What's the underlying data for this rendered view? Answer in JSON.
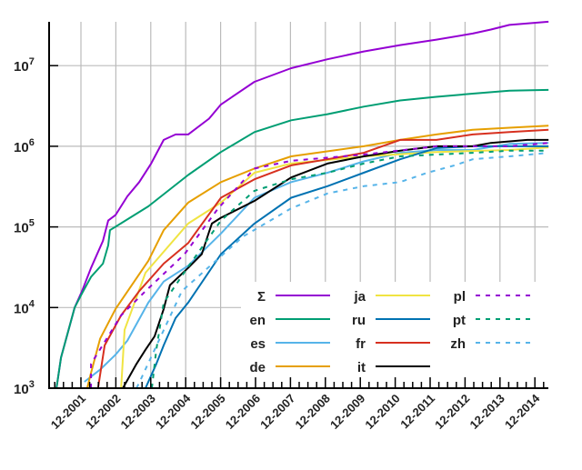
{
  "chart_data": {
    "type": "line",
    "title": "",
    "xlabel": "",
    "ylabel": "",
    "y_scale": "log",
    "ylim": [
      1000,
      35000000
    ],
    "xlim": [
      "2001-01",
      "2015-04"
    ],
    "grid": true,
    "legend_position": "bottom-right",
    "x_tick_labels": [
      "12-2001",
      "12-2002",
      "12-2003",
      "12-2004",
      "12-2005",
      "12-2006",
      "12-2007",
      "12-2008",
      "12-2009",
      "12-2010",
      "12-2011",
      "12-2012",
      "12-2013",
      "12-2014"
    ],
    "x_tick_years": [
      2001.92,
      2002.92,
      2003.92,
      2004.92,
      2005.92,
      2006.92,
      2007.92,
      2008.92,
      2009.92,
      2010.92,
      2011.92,
      2012.92,
      2013.92,
      2014.92
    ],
    "y_ticks": [
      {
        "base": "10",
        "exp": "3",
        "value": 1000
      },
      {
        "base": "10",
        "exp": "4",
        "value": 10000
      },
      {
        "base": "10",
        "exp": "5",
        "value": 100000
      },
      {
        "base": "10",
        "exp": "6",
        "value": 1000000
      },
      {
        "base": "10",
        "exp": "7",
        "value": 10000000
      }
    ],
    "series": [
      {
        "name": "Σ",
        "color": "#9400d3",
        "dash": false,
        "points": [
          [
            2001.22,
            1000
          ],
          [
            2001.35,
            2400
          ],
          [
            2001.74,
            10000
          ],
          [
            2001.95,
            16000
          ],
          [
            2002.21,
            31000
          ],
          [
            2002.55,
            67000
          ],
          [
            2002.7,
            120000
          ],
          [
            2002.91,
            140000
          ],
          [
            2003.25,
            240000
          ],
          [
            2003.59,
            360000
          ],
          [
            2003.93,
            610000
          ],
          [
            2004.29,
            1200000
          ],
          [
            2004.63,
            1400000
          ],
          [
            2004.99,
            1400000
          ],
          [
            2005.59,
            2200000
          ],
          [
            2005.93,
            3300000
          ],
          [
            2006.89,
            6300000
          ],
          [
            2007.94,
            9300000
          ],
          [
            2008.98,
            12000000
          ],
          [
            2010.02,
            15000000
          ],
          [
            2011.06,
            18000000
          ],
          [
            2012.1,
            21000000
          ],
          [
            2013.14,
            25000000
          ],
          [
            2013.66,
            28000000
          ],
          [
            2014.19,
            32000000
          ],
          [
            2015.31,
            35000000
          ]
        ]
      },
      {
        "name": "en",
        "color": "#009e73",
        "dash": false,
        "points": [
          [
            2001.22,
            1000
          ],
          [
            2001.35,
            2400
          ],
          [
            2001.74,
            10000
          ],
          [
            2001.95,
            15000
          ],
          [
            2002.21,
            24000
          ],
          [
            2002.55,
            35000
          ],
          [
            2002.7,
            59000
          ],
          [
            2002.75,
            91000
          ],
          [
            2003.85,
            180000
          ],
          [
            2004.99,
            440000
          ],
          [
            2005.93,
            850000
          ],
          [
            2006.89,
            1500000
          ],
          [
            2007.94,
            2100000
          ],
          [
            2008.98,
            2500000
          ],
          [
            2010.02,
            3100000
          ],
          [
            2011.06,
            3700000
          ],
          [
            2012.1,
            4100000
          ],
          [
            2013.14,
            4500000
          ],
          [
            2014.19,
            4900000
          ],
          [
            2015.31,
            5000000
          ]
        ]
      },
      {
        "name": "es",
        "color": "#56b4e9",
        "dash": false,
        "points": [
          [
            2002.02,
            1200
          ],
          [
            2002.47,
            1700
          ],
          [
            2002.91,
            2600
          ],
          [
            2003.25,
            3900
          ],
          [
            2003.85,
            11500
          ],
          [
            2004.29,
            21000
          ],
          [
            2004.99,
            33000
          ],
          [
            2005.93,
            83000
          ],
          [
            2006.89,
            230000
          ],
          [
            2007.94,
            360000
          ],
          [
            2008.98,
            470000
          ],
          [
            2010.02,
            650000
          ],
          [
            2011.06,
            830000
          ],
          [
            2012.1,
            900000
          ],
          [
            2013.14,
            900000
          ],
          [
            2014.19,
            1070000
          ],
          [
            2015.31,
            1100000
          ]
        ]
      },
      {
        "name": "de",
        "color": "#e69f00",
        "dash": false,
        "points": [
          [
            2002.1,
            1000
          ],
          [
            2002.21,
            1550
          ],
          [
            2002.47,
            4100
          ],
          [
            2002.91,
            9600
          ],
          [
            2003.85,
            38000
          ],
          [
            2004.29,
            91000
          ],
          [
            2004.99,
            200000
          ],
          [
            2005.93,
            360000
          ],
          [
            2006.89,
            530000
          ],
          [
            2007.94,
            750000
          ],
          [
            2010.02,
            1000000
          ],
          [
            2011.06,
            1200000
          ],
          [
            2012.1,
            1400000
          ],
          [
            2013.14,
            1600000
          ],
          [
            2014.19,
            1700000
          ],
          [
            2015.31,
            1800000
          ]
        ]
      },
      {
        "name": "ja",
        "color": "#f0e442",
        "dash": false,
        "points": [
          [
            2003.07,
            1000
          ],
          [
            2003.17,
            5300
          ],
          [
            2003.77,
            27000
          ],
          [
            2004.99,
            110000
          ],
          [
            2005.93,
            200000
          ],
          [
            2006.89,
            470000
          ],
          [
            2007.94,
            610000
          ],
          [
            2010.02,
            750000
          ],
          [
            2012.1,
            850000
          ],
          [
            2014.19,
            900000
          ],
          [
            2015.31,
            970000
          ]
        ]
      },
      {
        "name": "ru",
        "color": "#0072b2",
        "dash": false,
        "points": [
          [
            2003.77,
            1000
          ],
          [
            2004.08,
            2000
          ],
          [
            2004.29,
            3400
          ],
          [
            2004.63,
            7400
          ],
          [
            2004.99,
            11500
          ],
          [
            2005.93,
            46000
          ],
          [
            2006.89,
            110000
          ],
          [
            2007.94,
            230000
          ],
          [
            2008.98,
            320000
          ],
          [
            2010.02,
            470000
          ],
          [
            2011.06,
            690000
          ],
          [
            2012.1,
            950000
          ],
          [
            2013.14,
            1000000
          ],
          [
            2014.19,
            1000000
          ],
          [
            2015.31,
            1000000
          ]
        ]
      },
      {
        "name": "fr",
        "color": "#d7301f",
        "dash": false,
        "points": [
          [
            2002.41,
            1000
          ],
          [
            2002.6,
            3400
          ],
          [
            2003.07,
            8000
          ],
          [
            2003.59,
            16000
          ],
          [
            2004.29,
            35000
          ],
          [
            2004.99,
            63000
          ],
          [
            2005.93,
            230000
          ],
          [
            2006.89,
            390000
          ],
          [
            2007.94,
            580000
          ],
          [
            2008.98,
            690000
          ],
          [
            2010.02,
            830000
          ],
          [
            2011.06,
            1200000
          ],
          [
            2012.1,
            1200000
          ],
          [
            2013.14,
            1400000
          ],
          [
            2014.19,
            1500000
          ],
          [
            2015.31,
            1600000
          ]
        ]
      },
      {
        "name": "it",
        "color": "#000000",
        "dash": false,
        "points": [
          [
            2003.12,
            1000
          ],
          [
            2003.51,
            2000
          ],
          [
            2003.77,
            3000
          ],
          [
            2004.03,
            4400
          ],
          [
            2004.29,
            9600
          ],
          [
            2004.47,
            19000
          ],
          [
            2004.99,
            31000
          ],
          [
            2005.38,
            46000
          ],
          [
            2005.59,
            87000
          ],
          [
            2005.67,
            110000
          ],
          [
            2005.93,
            130000
          ],
          [
            2006.89,
            210000
          ],
          [
            2007.94,
            410000
          ],
          [
            2008.98,
            610000
          ],
          [
            2010.02,
            750000
          ],
          [
            2011.06,
            880000
          ],
          [
            2012.1,
            1000000
          ],
          [
            2013.14,
            1000000
          ],
          [
            2013.66,
            1100000
          ],
          [
            2014.7,
            1200000
          ],
          [
            2015.31,
            1200000
          ]
        ]
      },
      {
        "name": "pl",
        "color": "#9400d3",
        "dash": true,
        "points": [
          [
            2002.21,
            1000
          ],
          [
            2002.21,
            2000
          ],
          [
            2003.07,
            8000
          ],
          [
            2003.77,
            16000
          ],
          [
            2004.89,
            46000
          ],
          [
            2005.85,
            170000
          ],
          [
            2006.89,
            530000
          ],
          [
            2007.94,
            660000
          ],
          [
            2010.02,
            790000
          ],
          [
            2012.1,
            1000000
          ],
          [
            2014.19,
            1000000
          ],
          [
            2015.31,
            1100000
          ]
        ]
      },
      {
        "name": "pt",
        "color": "#009e73",
        "dash": true,
        "points": [
          [
            2003.95,
            1000
          ],
          [
            2004.08,
            3000
          ],
          [
            2004.29,
            11500
          ],
          [
            2004.99,
            32000
          ],
          [
            2005.93,
            120000
          ],
          [
            2006.89,
            280000
          ],
          [
            2007.94,
            390000
          ],
          [
            2008.98,
            470000
          ],
          [
            2010.02,
            610000
          ],
          [
            2011.06,
            750000
          ],
          [
            2012.1,
            790000
          ],
          [
            2013.14,
            830000
          ],
          [
            2014.19,
            880000
          ],
          [
            2015.31,
            880000
          ]
        ]
      },
      {
        "name": "zh",
        "color": "#56b4e9",
        "dash": true,
        "points": [
          [
            2003.51,
            1000
          ],
          [
            2003.64,
            1300
          ],
          [
            2004.81,
            16000
          ],
          [
            2006.56,
            76000
          ],
          [
            2007.94,
            170000
          ],
          [
            2008.98,
            260000
          ],
          [
            2010.02,
            320000
          ],
          [
            2011.06,
            360000
          ],
          [
            2011.84,
            470000
          ],
          [
            2012.62,
            580000
          ],
          [
            2013.14,
            690000
          ],
          [
            2014.19,
            750000
          ],
          [
            2015.31,
            830000
          ]
        ]
      }
    ]
  }
}
